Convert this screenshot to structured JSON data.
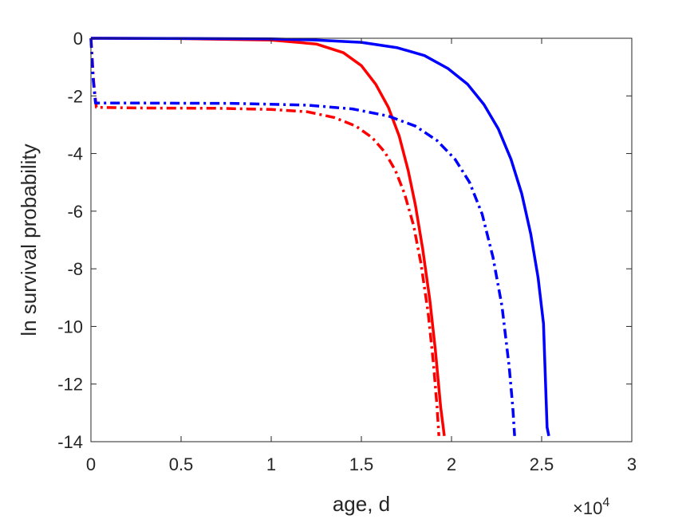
{
  "chart_data": {
    "type": "line",
    "xlabel": "age, d",
    "ylabel": "ln survival probability",
    "x_exponent_base": "×10",
    "x_exponent_power": "4",
    "xlim": [
      0,
      30000
    ],
    "ylim": [
      -14,
      0
    ],
    "x_tick_values": [
      0,
      5000,
      10000,
      15000,
      20000,
      25000,
      30000
    ],
    "x_tick_labels": [
      "0",
      "0.5",
      "1",
      "1.5",
      "2",
      "2.5",
      "3"
    ],
    "y_tick_values": [
      0,
      -2,
      -4,
      -6,
      -8,
      -10,
      -12,
      -14
    ],
    "y_tick_labels": [
      "0",
      "-2",
      "-4",
      "-6",
      "-8",
      "-10",
      "-12",
      "-14"
    ],
    "grid": false,
    "series": [
      {
        "color": "#ff0000",
        "style": "solid",
        "x": [
          0,
          5000,
          10000,
          12500,
          14000,
          15000,
          15800,
          16500,
          17100,
          17600,
          18000,
          18400,
          18800,
          19100,
          19400,
          19600
        ],
        "y": [
          0,
          -0.01,
          -0.06,
          -0.2,
          -0.5,
          -0.95,
          -1.6,
          -2.4,
          -3.4,
          -4.6,
          -5.8,
          -7.3,
          -9.1,
          -10.8,
          -12.8,
          -13.8
        ]
      },
      {
        "color": "#0000ff",
        "style": "solid",
        "x": [
          0,
          10000,
          12500,
          15000,
          17000,
          18500,
          19800,
          20900,
          21800,
          22600,
          23300,
          23900,
          24400,
          24800,
          25100,
          25300,
          25400
        ],
        "y": [
          0,
          -0.02,
          -0.06,
          -0.14,
          -0.33,
          -0.6,
          -1.05,
          -1.6,
          -2.3,
          -3.15,
          -4.2,
          -5.4,
          -6.8,
          -8.3,
          -9.9,
          -13.5,
          -13.8
        ]
      },
      {
        "color": "#ff0000",
        "style": "dashdot",
        "x": [
          0,
          150,
          300,
          3000,
          7000,
          10000,
          12000,
          13500,
          14700,
          15600,
          16300,
          16900,
          17400,
          17900,
          18300,
          18700,
          19000,
          19200,
          19300
        ],
        "y": [
          0,
          -1.5,
          -2.4,
          -2.42,
          -2.43,
          -2.47,
          -2.55,
          -2.75,
          -3.05,
          -3.45,
          -3.95,
          -4.6,
          -5.4,
          -6.5,
          -7.8,
          -9.5,
          -11.3,
          -12.8,
          -13.8
        ]
      },
      {
        "color": "#0000ff",
        "style": "dashdot",
        "x": [
          0,
          120,
          250,
          3000,
          8000,
          12000,
          14500,
          16500,
          18000,
          19200,
          20200,
          21000,
          21700,
          22300,
          22800,
          23200,
          23400,
          23500
        ],
        "y": [
          0,
          -1.4,
          -2.25,
          -2.25,
          -2.26,
          -2.32,
          -2.45,
          -2.7,
          -3.05,
          -3.55,
          -4.2,
          -5.0,
          -6.1,
          -7.6,
          -9.3,
          -11.4,
          -12.8,
          -13.8
        ]
      }
    ]
  }
}
